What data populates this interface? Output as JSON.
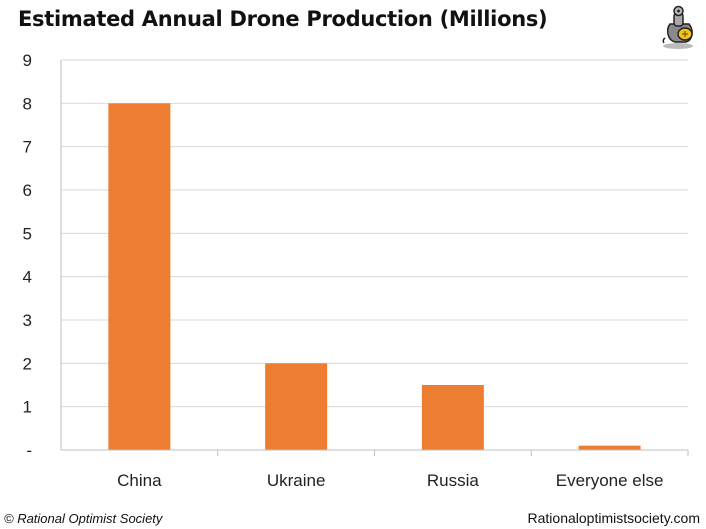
{
  "chart_data": {
    "type": "bar",
    "title": "Estimated Annual Drone Production (Millions)",
    "categories": [
      "China",
      "Ukraine",
      "Russia",
      "Everyone else"
    ],
    "values": [
      8,
      2,
      1.5,
      0.1
    ],
    "ytick_labels": [
      "-",
      "1",
      "2",
      "3",
      "4",
      "5",
      "6",
      "7",
      "8",
      "9"
    ],
    "ylim": [
      0,
      9
    ],
    "grid": true,
    "legend": "none",
    "bar_color": "#ED7D31"
  },
  "footer": {
    "copyright": "© Rational Optimist Society",
    "website": "Rationaloptimistsociety.com"
  },
  "logo_icon": "robot-mascot-icon"
}
